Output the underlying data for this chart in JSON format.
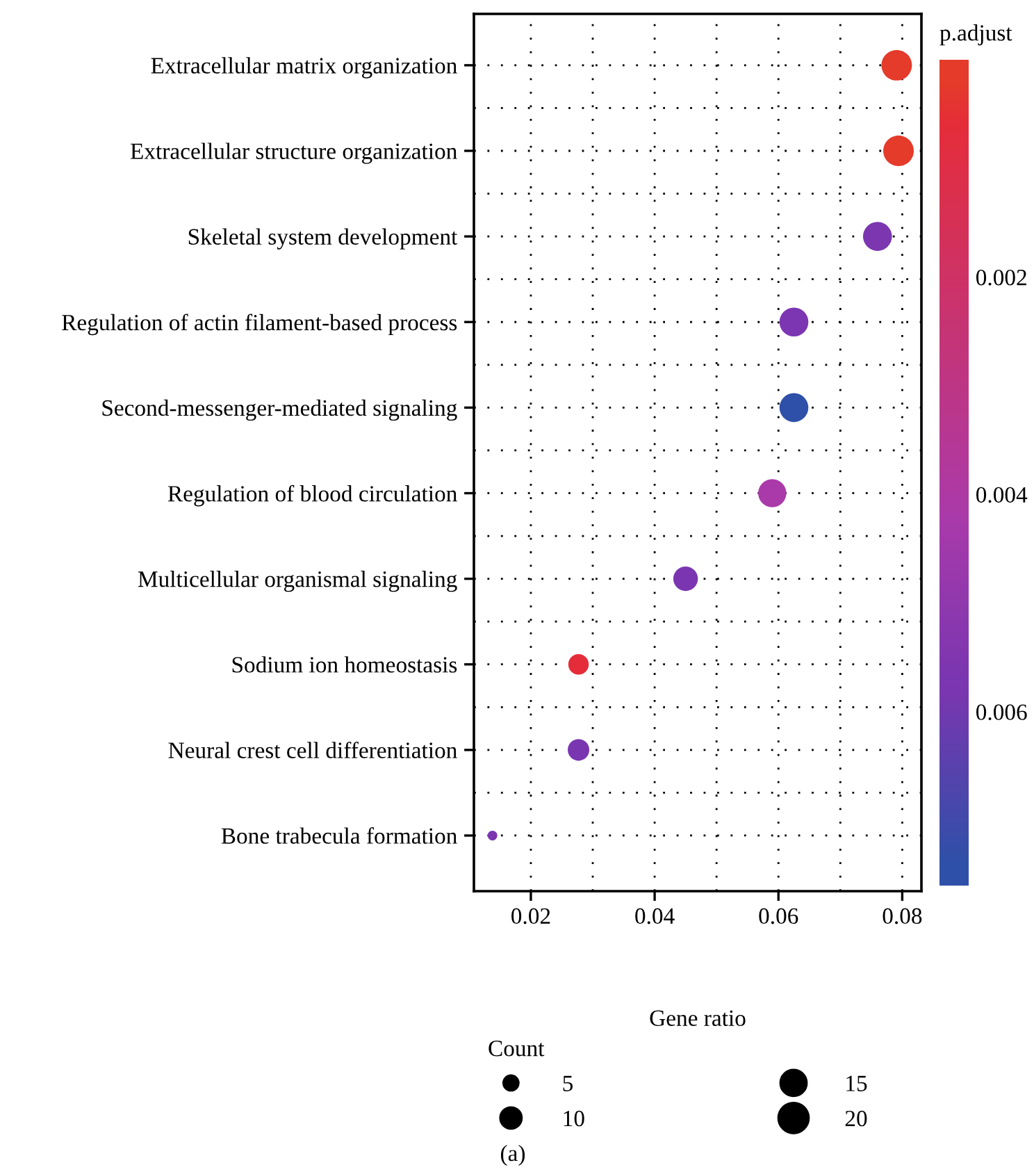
{
  "chart_data": {
    "type": "bubble",
    "xlabel": "Gene ratio",
    "legend_title": "Count",
    "clabel": "p.adjust",
    "annotations": [
      "(a)"
    ],
    "categories": [
      "Extracellular matrix organization",
      "Extracellular structure organization",
      "Skeletal system development",
      "Regulation of actin filament-based process",
      "Second-messenger-mediated signaling",
      "Regulation of blood circulation",
      "Multicellular organismal signaling",
      "Sodium ion homeostasis",
      "Neural crest cell differentiation",
      "Bone trabecula formation"
    ],
    "values": [
      0.0791,
      0.0794,
      0.076,
      0.0625,
      0.0625,
      0.059,
      0.045,
      0.0277,
      0.0277,
      0.0138
    ],
    "sizes": [
      20,
      20,
      18,
      18,
      18,
      17,
      13,
      9,
      10,
      2
    ],
    "size_legend": [
      5,
      10,
      15,
      20
    ],
    "cvalues": [
      0.0002,
      0.0002,
      0.0058,
      0.0057,
      0.0074,
      0.0042,
      0.0057,
      0.0006,
      0.0057,
      0.0058
    ],
    "colors": [
      "#e43b2a",
      "#e43b2a",
      "#7b36b0",
      "#7c36b2",
      "#2f50a8",
      "#aa3aaa",
      "#7a36b0",
      "#e52d3a",
      "#7a36b0",
      "#7b36b0"
    ],
    "clim": [
      0.0076,
      0.0
    ],
    "cticks": [
      0.002,
      0.004,
      0.006
    ],
    "xlim": [
      0.0108,
      0.0831
    ],
    "xticks": [
      0.02,
      0.04,
      0.06,
      0.08
    ],
    "orientation": "horizontal",
    "grid": true
  }
}
